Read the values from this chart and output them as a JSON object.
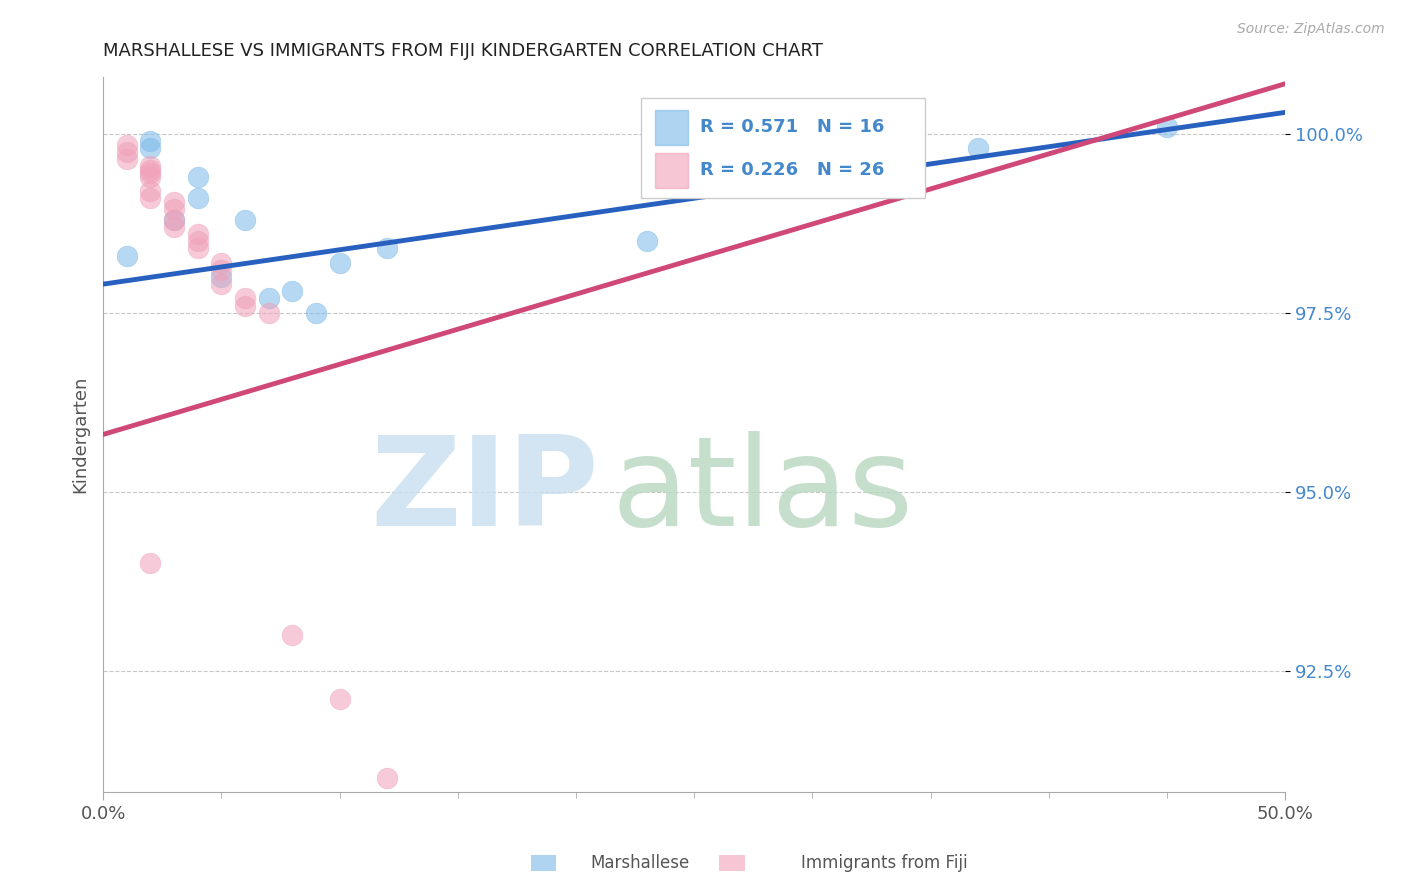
{
  "title": "MARSHALLESE VS IMMIGRANTS FROM FIJI KINDERGARTEN CORRELATION CHART",
  "source": "Source: ZipAtlas.com",
  "ylabel": "Kindergarten",
  "legend_label1": "Marshallese",
  "legend_label2": "Immigrants from Fiji",
  "xlim": [
    0.0,
    0.5
  ],
  "ylim": [
    0.908,
    1.008
  ],
  "ytick_positions": [
    0.925,
    0.95,
    0.975,
    1.0
  ],
  "ytick_labels": [
    "92.5%",
    "95.0%",
    "97.5%",
    "100.0%"
  ],
  "blue_scatter_x": [
    0.02,
    0.04,
    0.12,
    0.03,
    0.05,
    0.08,
    0.09,
    0.23,
    0.02,
    0.04,
    0.06,
    0.37,
    0.45,
    0.01,
    0.07,
    0.1
  ],
  "blue_scatter_y": [
    0.998,
    0.994,
    0.984,
    0.988,
    0.98,
    0.978,
    0.975,
    0.985,
    0.999,
    0.991,
    0.988,
    0.998,
    1.001,
    0.983,
    0.977,
    0.982
  ],
  "pink_scatter_x": [
    0.01,
    0.01,
    0.01,
    0.02,
    0.02,
    0.02,
    0.02,
    0.02,
    0.02,
    0.03,
    0.03,
    0.03,
    0.03,
    0.04,
    0.04,
    0.04,
    0.05,
    0.05,
    0.05,
    0.06,
    0.06,
    0.07,
    0.02,
    0.08,
    0.1,
    0.12
  ],
  "pink_scatter_y": [
    0.9985,
    0.9975,
    0.9965,
    0.9955,
    0.995,
    0.9945,
    0.994,
    0.992,
    0.991,
    0.9905,
    0.9895,
    0.988,
    0.987,
    0.986,
    0.985,
    0.984,
    0.982,
    0.981,
    0.979,
    0.977,
    0.976,
    0.975,
    0.94,
    0.93,
    0.921,
    0.91
  ],
  "blue_line_x": [
    0.0,
    0.5
  ],
  "blue_line_y": [
    0.979,
    1.003
  ],
  "pink_line_x": [
    0.0,
    0.5
  ],
  "pink_line_y": [
    0.958,
    1.007
  ],
  "blue_color": "#7ab8e8",
  "pink_color": "#f0a0b8",
  "blue_line_color": "#2860c0",
  "pink_line_color": "#d04878",
  "background_color": "#ffffff",
  "grid_color": "#c8c8c8",
  "watermark_zip_color": "#c8dff0",
  "watermark_atlas_color": "#b8d8c0"
}
